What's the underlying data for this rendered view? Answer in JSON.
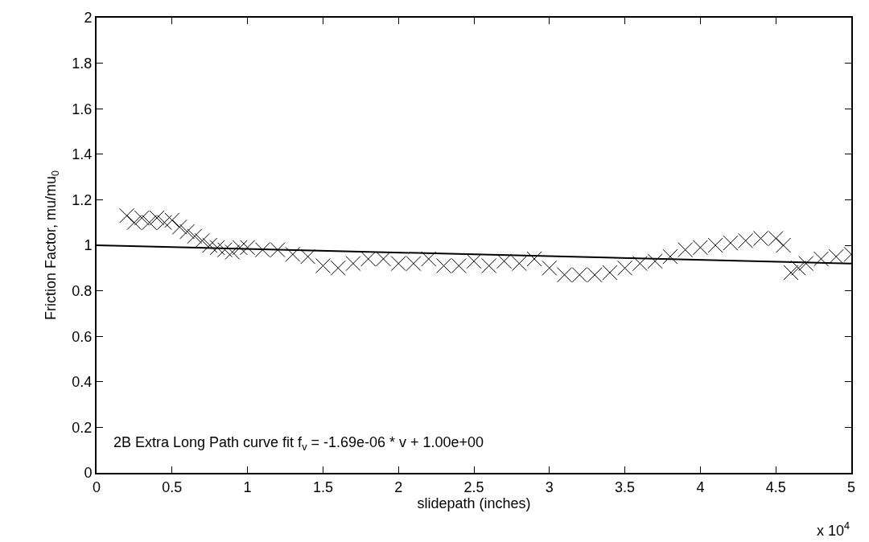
{
  "chart_data": {
    "type": "scatter",
    "xlabel": "slidepath (inches)",
    "ylabel": "Friction Factor, mu/mu$_{0}$",
    "xlim": [
      0,
      5
    ],
    "ylim": [
      0,
      2
    ],
    "xticks": [
      0,
      0.5,
      1,
      1.5,
      2,
      2.5,
      3,
      3.5,
      4,
      4.5,
      5
    ],
    "yticks": [
      0,
      0.2,
      0.4,
      0.6,
      0.8,
      1,
      1.2,
      1.4,
      1.6,
      1.8,
      2
    ],
    "marker": "cross",
    "series": [
      {
        "color": "#000000",
        "x": [
          0.2,
          0.25,
          0.3,
          0.35,
          0.4,
          0.45,
          0.5,
          0.55,
          0.6,
          0.65,
          0.7,
          0.75,
          0.8,
          0.85,
          0.9,
          0.95,
          1.0,
          1.1,
          1.2,
          1.3,
          1.4,
          1.5,
          1.6,
          1.7,
          1.8,
          1.9,
          2.0,
          2.1,
          2.2,
          2.3,
          2.4,
          2.5,
          2.6,
          2.7,
          2.8,
          2.9,
          3.0,
          3.1,
          3.2,
          3.3,
          3.4,
          3.5,
          3.6,
          3.7,
          3.8,
          3.9,
          4.0,
          4.1,
          4.2,
          4.3,
          4.4,
          4.5,
          4.55,
          4.6,
          4.65,
          4.7,
          4.8,
          4.9,
          5.0
        ],
        "values": [
          1.13,
          1.1,
          1.12,
          1.1,
          1.12,
          1.1,
          1.11,
          1.08,
          1.06,
          1.04,
          1.02,
          1.0,
          0.99,
          0.98,
          0.97,
          0.99,
          0.99,
          0.98,
          0.98,
          0.96,
          0.95,
          0.91,
          0.9,
          0.92,
          0.94,
          0.94,
          0.92,
          0.92,
          0.94,
          0.91,
          0.91,
          0.93,
          0.91,
          0.93,
          0.92,
          0.94,
          0.9,
          0.87,
          0.87,
          0.87,
          0.88,
          0.9,
          0.92,
          0.93,
          0.95,
          0.98,
          0.99,
          1.0,
          1.01,
          1.02,
          1.03,
          1.03,
          1.0,
          0.88,
          0.9,
          0.92,
          0.94,
          0.95,
          0.96
        ]
      },
      {
        "type": "line",
        "marker": "none",
        "color": "#000000",
        "x": [
          0,
          5
        ],
        "values": [
          1.0,
          0.92
        ]
      }
    ],
    "annotations": [
      "2B Extra Long Path curve fit f$_{v}$ = -1.69e-06 * v + 1.00e+00",
      "x 10$^{4}$"
    ]
  }
}
